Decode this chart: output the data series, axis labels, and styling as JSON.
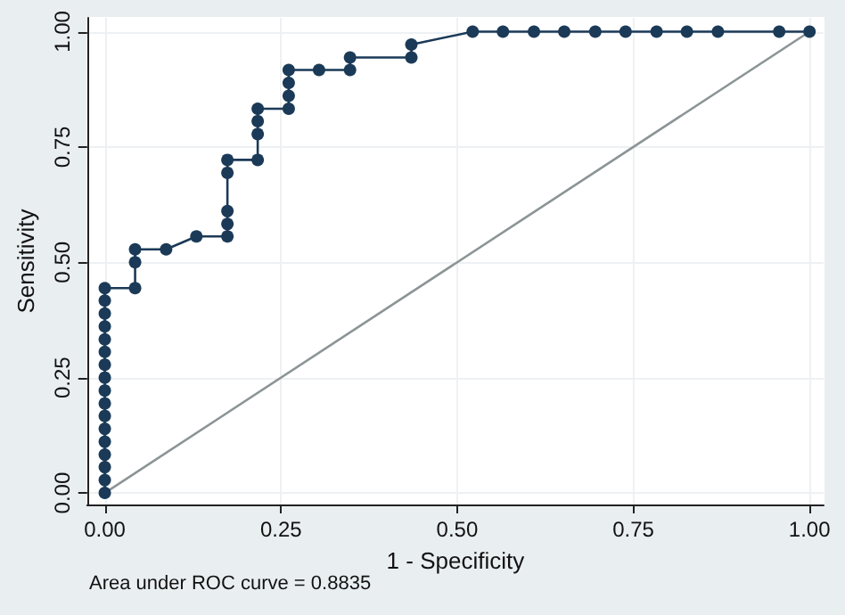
{
  "chart_data": {
    "type": "line",
    "xlabel": "1 - Specificity",
    "ylabel": "Sensitivity",
    "annotations": [
      "Area under ROC curve = 0.8835"
    ],
    "xlim": [
      -0.025,
      1.02
    ],
    "ylim": [
      -0.025,
      1.03
    ],
    "xticks": [
      {
        "value": 0,
        "label": "0.00"
      },
      {
        "value": 0.25,
        "label": "0.25"
      },
      {
        "value": 0.5,
        "label": "0.50"
      },
      {
        "value": 0.75,
        "label": "0.75"
      },
      {
        "value": 1,
        "label": "1.00"
      }
    ],
    "yticks": [
      {
        "value": 0,
        "label": "0.00"
      },
      {
        "value": 0.25,
        "label": "0.25"
      },
      {
        "value": 0.5,
        "label": "0.50"
      },
      {
        "value": 0.75,
        "label": "0.75"
      },
      {
        "value": 1,
        "label": "1.00"
      }
    ],
    "grid": true,
    "series": [
      {
        "color": "#1b3a57",
        "marker": "circle",
        "line_style": "solid",
        "x": [
          0,
          0,
          0,
          0,
          0,
          0,
          0,
          0,
          0,
          0,
          0,
          0,
          0,
          0,
          0,
          0,
          0,
          0.043,
          0.043,
          0.043,
          0.087,
          0.13,
          0.174,
          0.174,
          0.174,
          0.174,
          0.174,
          0.217,
          0.217,
          0.217,
          0.217,
          0.261,
          0.261,
          0.261,
          0.261,
          0.304,
          0.348,
          0.348,
          0.435,
          0.435,
          0.522,
          0.565,
          0.609,
          0.652,
          0.696,
          0.739,
          0.783,
          0.826,
          0.87,
          0.957,
          1
        ],
        "values": [
          0,
          0.028,
          0.056,
          0.083,
          0.111,
          0.139,
          0.167,
          0.194,
          0.222,
          0.25,
          0.278,
          0.306,
          0.333,
          0.361,
          0.389,
          0.417,
          0.444,
          0.444,
          0.5,
          0.528,
          0.528,
          0.556,
          0.556,
          0.583,
          0.611,
          0.694,
          0.722,
          0.722,
          0.778,
          0.806,
          0.833,
          0.833,
          0.861,
          0.889,
          0.917,
          0.917,
          0.917,
          0.944,
          0.944,
          0.972,
          1,
          1,
          1,
          1,
          1,
          1,
          1,
          1,
          1,
          1,
          1
        ]
      },
      {
        "color": "#8c9496",
        "marker": "none",
        "line_style": "solid",
        "x": [
          0,
          1
        ],
        "values": [
          0,
          1
        ]
      }
    ]
  }
}
